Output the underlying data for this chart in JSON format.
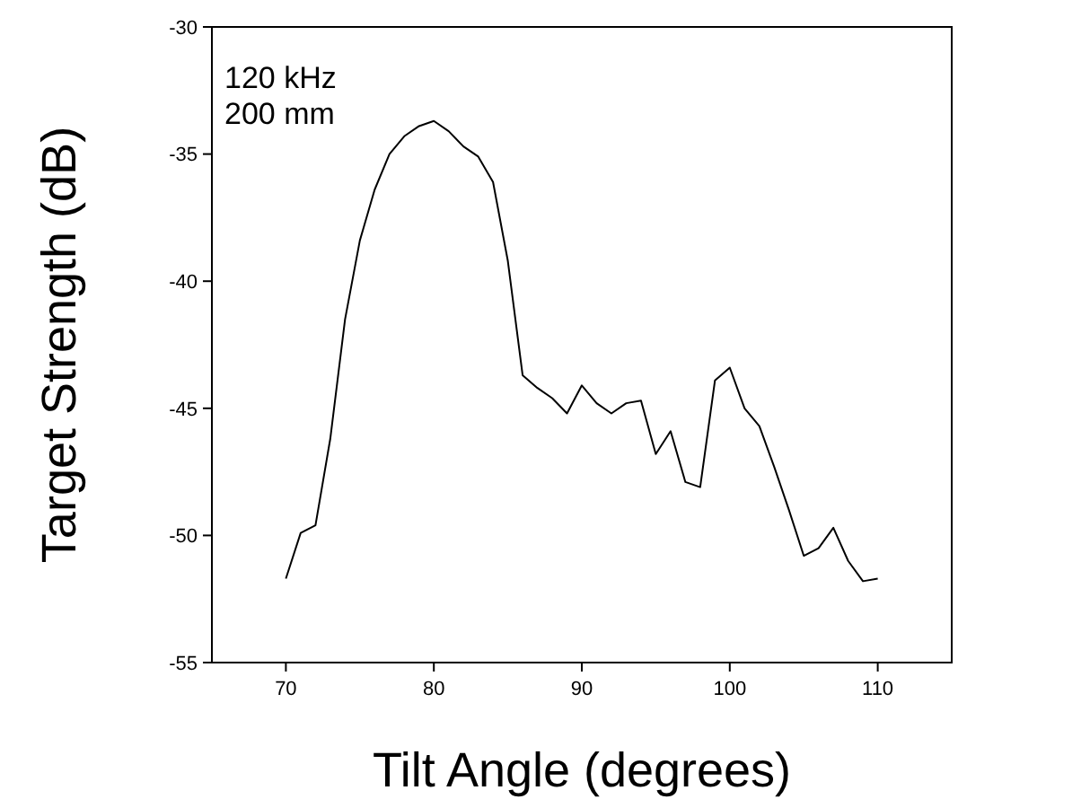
{
  "chart_data": {
    "type": "line",
    "xlabel": "Tilt Angle (degrees)",
    "ylabel": "Target Strength (dB)",
    "annotations": [
      "120 kHz",
      "200 mm"
    ],
    "x": [
      70,
      71,
      72,
      73,
      74,
      75,
      76,
      77,
      78,
      79,
      80,
      81,
      82,
      83,
      84,
      85,
      86,
      87,
      88,
      89,
      90,
      91,
      92,
      93,
      94,
      95,
      96,
      97,
      98,
      99,
      100,
      101,
      102,
      103,
      104,
      105,
      106,
      107,
      108,
      109,
      110
    ],
    "series": [
      {
        "color": "#000000",
        "values": [
          -51.7,
          -49.9,
          -49.6,
          -46.2,
          -41.5,
          -38.4,
          -36.4,
          -35.0,
          -34.3,
          -33.9,
          -33.7,
          -34.1,
          -34.7,
          -35.1,
          -36.1,
          -39.2,
          -43.7,
          -44.2,
          -44.6,
          -45.2,
          -44.1,
          -44.8,
          -45.2,
          -44.8,
          -44.7,
          -46.8,
          -45.9,
          -47.9,
          -48.1,
          -43.9,
          -43.4,
          -45.0,
          -45.7,
          -47.3,
          -49.0,
          -50.8,
          -50.5,
          -49.7,
          -51.0,
          -51.8,
          -51.7
        ]
      }
    ],
    "xlim": [
      65,
      115
    ],
    "xticks": [
      70,
      80,
      90,
      100,
      110
    ],
    "ylim": [
      -55,
      -30
    ],
    "yticks": [
      -55,
      -50,
      -45,
      -40,
      -35,
      -30
    ],
    "grid": false,
    "marker": "none",
    "line_style": "solid"
  }
}
